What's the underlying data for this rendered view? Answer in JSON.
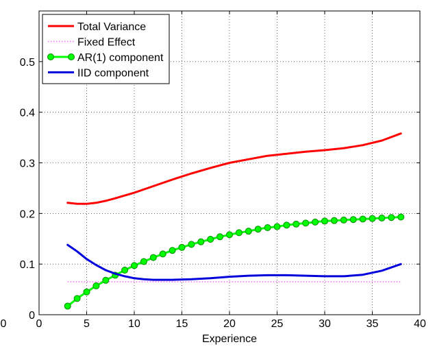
{
  "chart_data": {
    "type": "line",
    "title": "",
    "xlabel": "Experience",
    "ylabel": "",
    "xlim": [
      0,
      40
    ],
    "ylim": [
      0,
      0.6
    ],
    "xticks": [
      0,
      5,
      10,
      15,
      20,
      25,
      30,
      35,
      40
    ],
    "xtick_labels": [
      "0",
      "5",
      "10",
      "15",
      "20",
      "25",
      "30",
      "35",
      "40"
    ],
    "yticks": [
      0,
      0.1,
      0.2,
      0.3,
      0.4,
      0.5
    ],
    "ytick_labels": [
      "0",
      "0.1",
      "0.2",
      "0.3",
      "0.4",
      "0.5"
    ],
    "extra_left_label": "0",
    "grid": true,
    "legend_position": "top-left",
    "series": [
      {
        "name": "Total Variance",
        "color": "#ff0000",
        "style": "solid",
        "x": [
          3,
          4,
          5,
          6,
          7,
          8,
          10,
          12,
          14,
          16,
          18,
          20,
          22,
          24,
          26,
          28,
          30,
          32,
          34,
          36,
          38
        ],
        "y": [
          0.221,
          0.219,
          0.219,
          0.221,
          0.225,
          0.23,
          0.241,
          0.254,
          0.267,
          0.279,
          0.29,
          0.3,
          0.307,
          0.314,
          0.318,
          0.322,
          0.325,
          0.329,
          0.335,
          0.344,
          0.358
        ]
      },
      {
        "name": "Fixed Effect",
        "color": "#ff66ff",
        "style": "dotted",
        "x": [
          3,
          38
        ],
        "y": [
          0.065,
          0.065
        ]
      },
      {
        "name": "AR(1) component",
        "color": "#00ff00",
        "style": "solid-markers",
        "x": [
          3,
          4,
          5,
          6,
          7,
          8,
          9,
          10,
          11,
          12,
          13,
          14,
          15,
          16,
          17,
          18,
          19,
          20,
          21,
          22,
          23,
          24,
          25,
          26,
          27,
          28,
          29,
          30,
          31,
          32,
          33,
          34,
          35,
          36,
          37,
          38
        ],
        "y": [
          0.017,
          0.032,
          0.045,
          0.057,
          0.068,
          0.078,
          0.088,
          0.097,
          0.105,
          0.113,
          0.12,
          0.127,
          0.133,
          0.139,
          0.144,
          0.149,
          0.154,
          0.158,
          0.162,
          0.165,
          0.169,
          0.172,
          0.174,
          0.177,
          0.179,
          0.181,
          0.183,
          0.185,
          0.186,
          0.187,
          0.188,
          0.189,
          0.19,
          0.191,
          0.192,
          0.193
        ]
      },
      {
        "name": "IID component",
        "color": "#0000dd",
        "style": "solid",
        "x": [
          3,
          4,
          5,
          6,
          7,
          8,
          9,
          10,
          11,
          12,
          13,
          14,
          16,
          18,
          20,
          22,
          24,
          26,
          28,
          30,
          32,
          34,
          36,
          38
        ],
        "y": [
          0.138,
          0.125,
          0.11,
          0.098,
          0.088,
          0.081,
          0.076,
          0.072,
          0.07,
          0.069,
          0.069,
          0.069,
          0.07,
          0.072,
          0.075,
          0.077,
          0.078,
          0.078,
          0.077,
          0.076,
          0.076,
          0.079,
          0.087,
          0.1
        ]
      }
    ]
  }
}
